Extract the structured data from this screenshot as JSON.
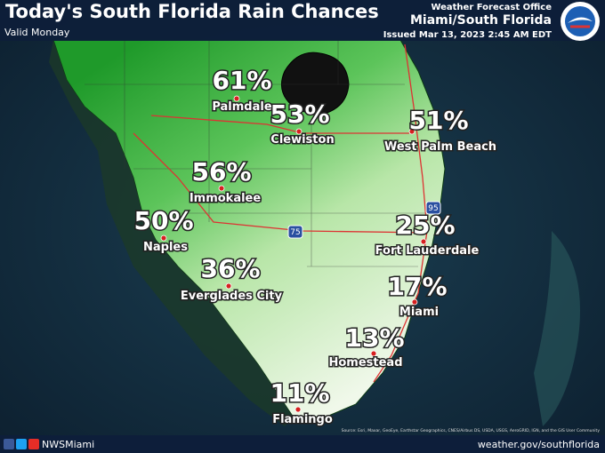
{
  "header": {
    "title": "Today's South Florida Rain Chances",
    "valid": "Valid Monday",
    "office_line1": "Weather Forecast Office",
    "office_line2": "Miami/South Florida",
    "issued": "Issued Mar 13, 2023 2:45 AM EDT"
  },
  "cities": [
    {
      "chance": "61%",
      "name": "Palmdale"
    },
    {
      "chance": "53%",
      "name": "Clewiston"
    },
    {
      "chance": "51%",
      "name": "West Palm Beach"
    },
    {
      "chance": "56%",
      "name": "Immokalee"
    },
    {
      "chance": "50%",
      "name": "Naples"
    },
    {
      "chance": "36%",
      "name": "Everglades City"
    },
    {
      "chance": "25%",
      "name": "Fort Lauderdale"
    },
    {
      "chance": "17%",
      "name": "Miami"
    },
    {
      "chance": "13%",
      "name": "Homestead"
    },
    {
      "chance": "11%",
      "name": "Flamingo"
    }
  ],
  "highway_shields": [
    "75",
    "95"
  ],
  "attribution": "Source: Esri, Maxar, GeoEye, Earthstar Geographics, CNES/Airbus DS, USDA, USGS, AeroGRID, IGN, and the GIS User Community",
  "footer": {
    "social": "NWSMiami",
    "url": "weather.gov/southflorida"
  }
}
